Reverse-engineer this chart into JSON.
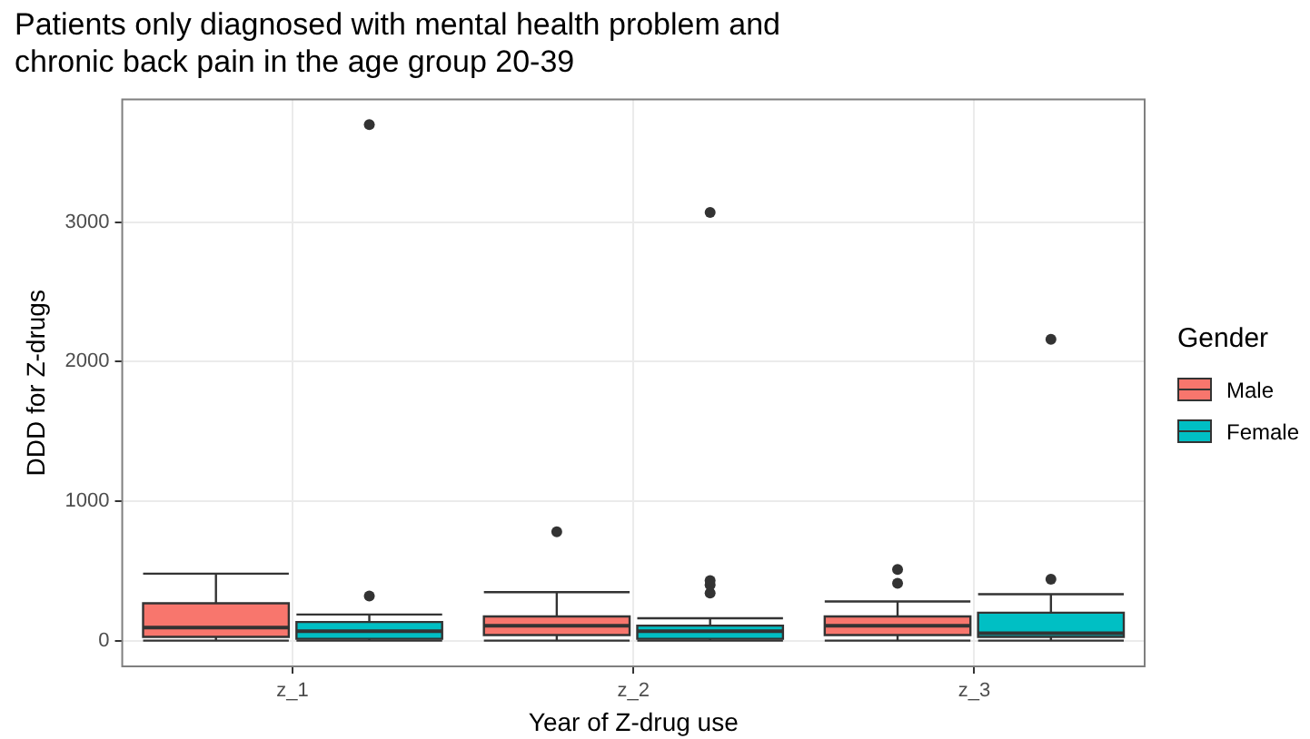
{
  "chart_data": {
    "type": "box",
    "title": "Patients only diagnosed with mental health problem and\nchronic back pain in the age group 20-39",
    "xlabel": "Year of Z-drug use",
    "ylabel": "DDD for Z-drugs",
    "legend_title": "Gender",
    "categories": [
      "z_1",
      "z_2",
      "z_3"
    ],
    "ylim": [
      -185,
      3880
    ],
    "yticks": [
      0,
      1000,
      2000,
      3000
    ],
    "grid": true,
    "legend": "right",
    "series": [
      {
        "name": "Male",
        "color": "#f8766d",
        "boxes": [
          {
            "low": 0,
            "q1": 27,
            "median": 93,
            "q3": 267,
            "high": 480
          },
          {
            "low": 0,
            "q1": 40,
            "median": 107,
            "q3": 173,
            "high": 347,
            "outliers": [
              780
            ]
          },
          {
            "low": 0,
            "q1": 40,
            "median": 107,
            "q3": 173,
            "high": 280,
            "outliers": [
              410,
              510
            ]
          }
        ]
      },
      {
        "name": "Female",
        "color": "#00bfc4",
        "boxes": [
          {
            "low": 0,
            "q1": 13,
            "median": 67,
            "q3": 133,
            "high": 187,
            "outliers": [
              320,
              3700
            ]
          },
          {
            "low": 0,
            "q1": 13,
            "median": 67,
            "q3": 107,
            "high": 160,
            "outliers": [
              340,
              400,
              430,
              3070
            ]
          },
          {
            "low": 0,
            "q1": 27,
            "median": 53,
            "q3": 200,
            "high": 333,
            "outliers": [
              440,
              2160
            ]
          }
        ]
      }
    ]
  }
}
